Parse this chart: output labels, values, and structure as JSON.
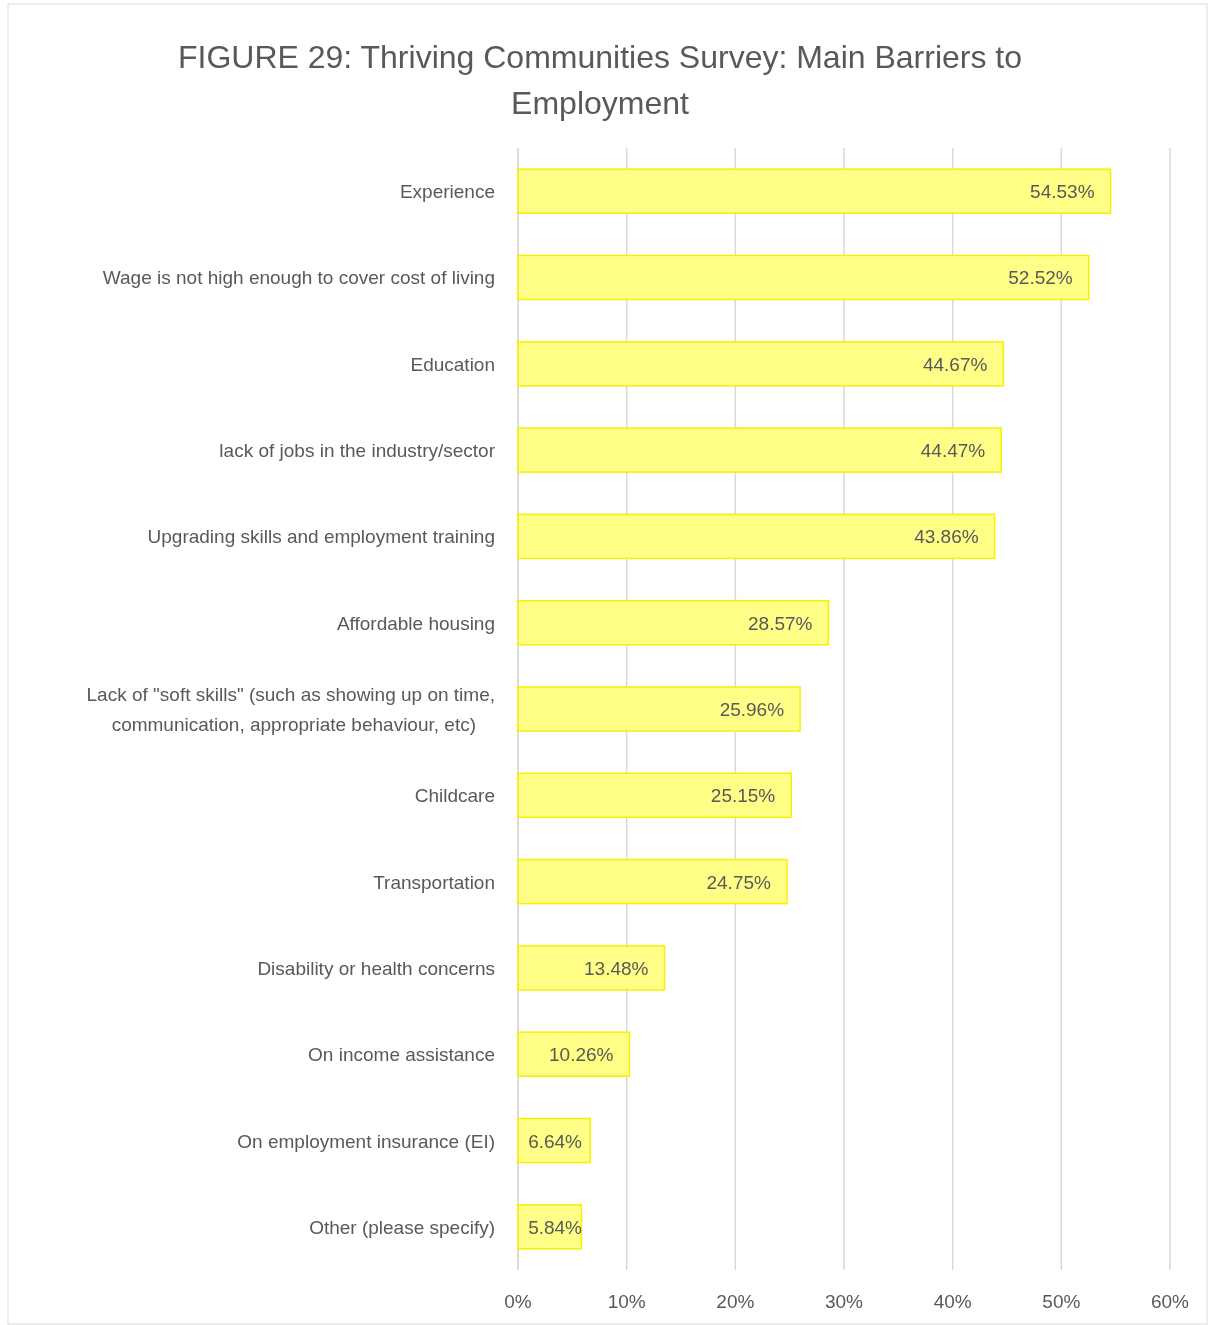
{
  "chart_data": {
    "type": "bar",
    "orientation": "horizontal",
    "title": "FIGURE 29: Thriving Communities Survey: Main Barriers to Employment",
    "categories": [
      "Experience",
      "Wage is not high enough to cover cost of living",
      "Education",
      "lack of jobs in the industry/sector",
      "Upgrading skills and employment training",
      "Affordable housing",
      "Lack of \"soft skills\" (such as showing up on time, communication, appropriate behaviour, etc)",
      "Childcare",
      "Transportation",
      "Disability or health concerns",
      "On income assistance",
      "On employment insurance (EI)",
      "Other (please specify)"
    ],
    "values": [
      54.53,
      52.52,
      44.67,
      44.47,
      43.86,
      28.57,
      25.96,
      25.15,
      24.75,
      13.48,
      10.26,
      6.64,
      5.84
    ],
    "value_labels": [
      "54.53%",
      "52.52%",
      "44.67%",
      "44.47%",
      "43.86%",
      "28.57%",
      "25.96%",
      "25.15%",
      "24.75%",
      "13.48%",
      "10.26%",
      "6.64%",
      "5.84%"
    ],
    "color": "#ffff88",
    "xlim": [
      0,
      60
    ],
    "xticks": [
      {
        "value": 0,
        "label": "0%"
      },
      {
        "value": 10,
        "label": "10%"
      },
      {
        "value": 20,
        "label": "20%"
      },
      {
        "value": 30,
        "label": "30%"
      },
      {
        "value": 40,
        "label": "40%"
      },
      {
        "value": 50,
        "label": "50%"
      },
      {
        "value": 60,
        "label": "60%"
      }
    ],
    "grid": "x"
  }
}
